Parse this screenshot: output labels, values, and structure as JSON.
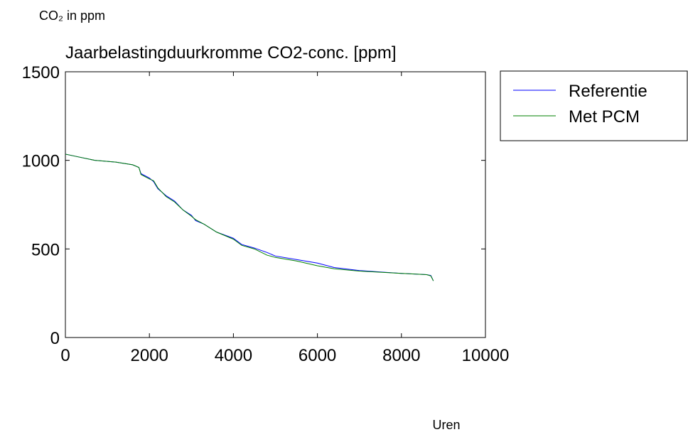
{
  "chart_data": {
    "type": "line",
    "title": "Jaarbelastingduurkromme CO2-conc. [ppm]",
    "y_label": "CO₂ in ppm",
    "x_label": "Uren",
    "x": [
      0,
      300,
      700,
      1200,
      1600,
      1750,
      1800,
      2000,
      2100,
      2200,
      2400,
      2600,
      2800,
      3000,
      3100,
      3300,
      3600,
      4000,
      4200,
      4500,
      4800,
      5000,
      5500,
      6000,
      6400,
      7000,
      8000,
      8600,
      8700,
      8760
    ],
    "series": [
      {
        "name": "Referentie",
        "color": "#0000ff",
        "values": [
          1035,
          1020,
          1000,
          990,
          975,
          960,
          925,
          900,
          880,
          840,
          800,
          770,
          720,
          690,
          660,
          640,
          595,
          560,
          525,
          505,
          480,
          460,
          440,
          420,
          395,
          378,
          362,
          355,
          350,
          320
        ]
      },
      {
        "name": "Met PCM",
        "color": "#008000",
        "values": [
          1035,
          1020,
          1000,
          990,
          975,
          960,
          920,
          895,
          885,
          845,
          795,
          765,
          720,
          685,
          665,
          640,
          595,
          555,
          520,
          500,
          465,
          452,
          432,
          405,
          388,
          375,
          362,
          355,
          348,
          320
        ]
      }
    ],
    "xlim": [
      0,
      10000
    ],
    "xticks": [
      0,
      2000,
      4000,
      6000,
      8000,
      10000
    ],
    "ylim": [
      0,
      1500
    ],
    "yticks": [
      0,
      500,
      1000,
      1500
    ],
    "grid": false,
    "legend": "outside-right"
  }
}
